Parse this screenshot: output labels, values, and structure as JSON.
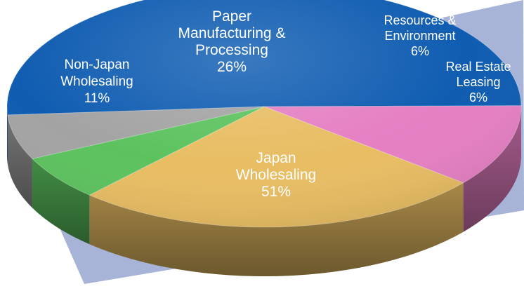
{
  "chart_data": {
    "type": "pie",
    "style": "3d-tilted",
    "slices": [
      {
        "name": "Japan Wholesaling",
        "value": 51,
        "label_lines": [
          "Japan",
          "Wholesaling",
          "51%"
        ],
        "color": "#0f5cb1"
      },
      {
        "name": "Non-Japan Wholesaling",
        "value": 11,
        "label_lines": [
          "Non-Japan",
          "Wholesaling",
          "11%"
        ],
        "color": "#e57fc3"
      },
      {
        "name": "Paper Manufacturing & Processing",
        "value": 26,
        "label_lines": [
          "Paper",
          "Manufacturing &",
          "Processing",
          "26%"
        ],
        "color": "#e8bd63"
      },
      {
        "name": "Resources & Environment",
        "value": 6,
        "label_lines": [
          "Resources &",
          "Environment",
          "6%"
        ],
        "color": "#5cc25e"
      },
      {
        "name": "Real Estate Leasing",
        "value": 6,
        "label_lines": [
          "Real Estate",
          "Leasing",
          "6%"
        ],
        "color": "#a3a3a3"
      }
    ],
    "backdrop_color": "#a7b4d8"
  }
}
